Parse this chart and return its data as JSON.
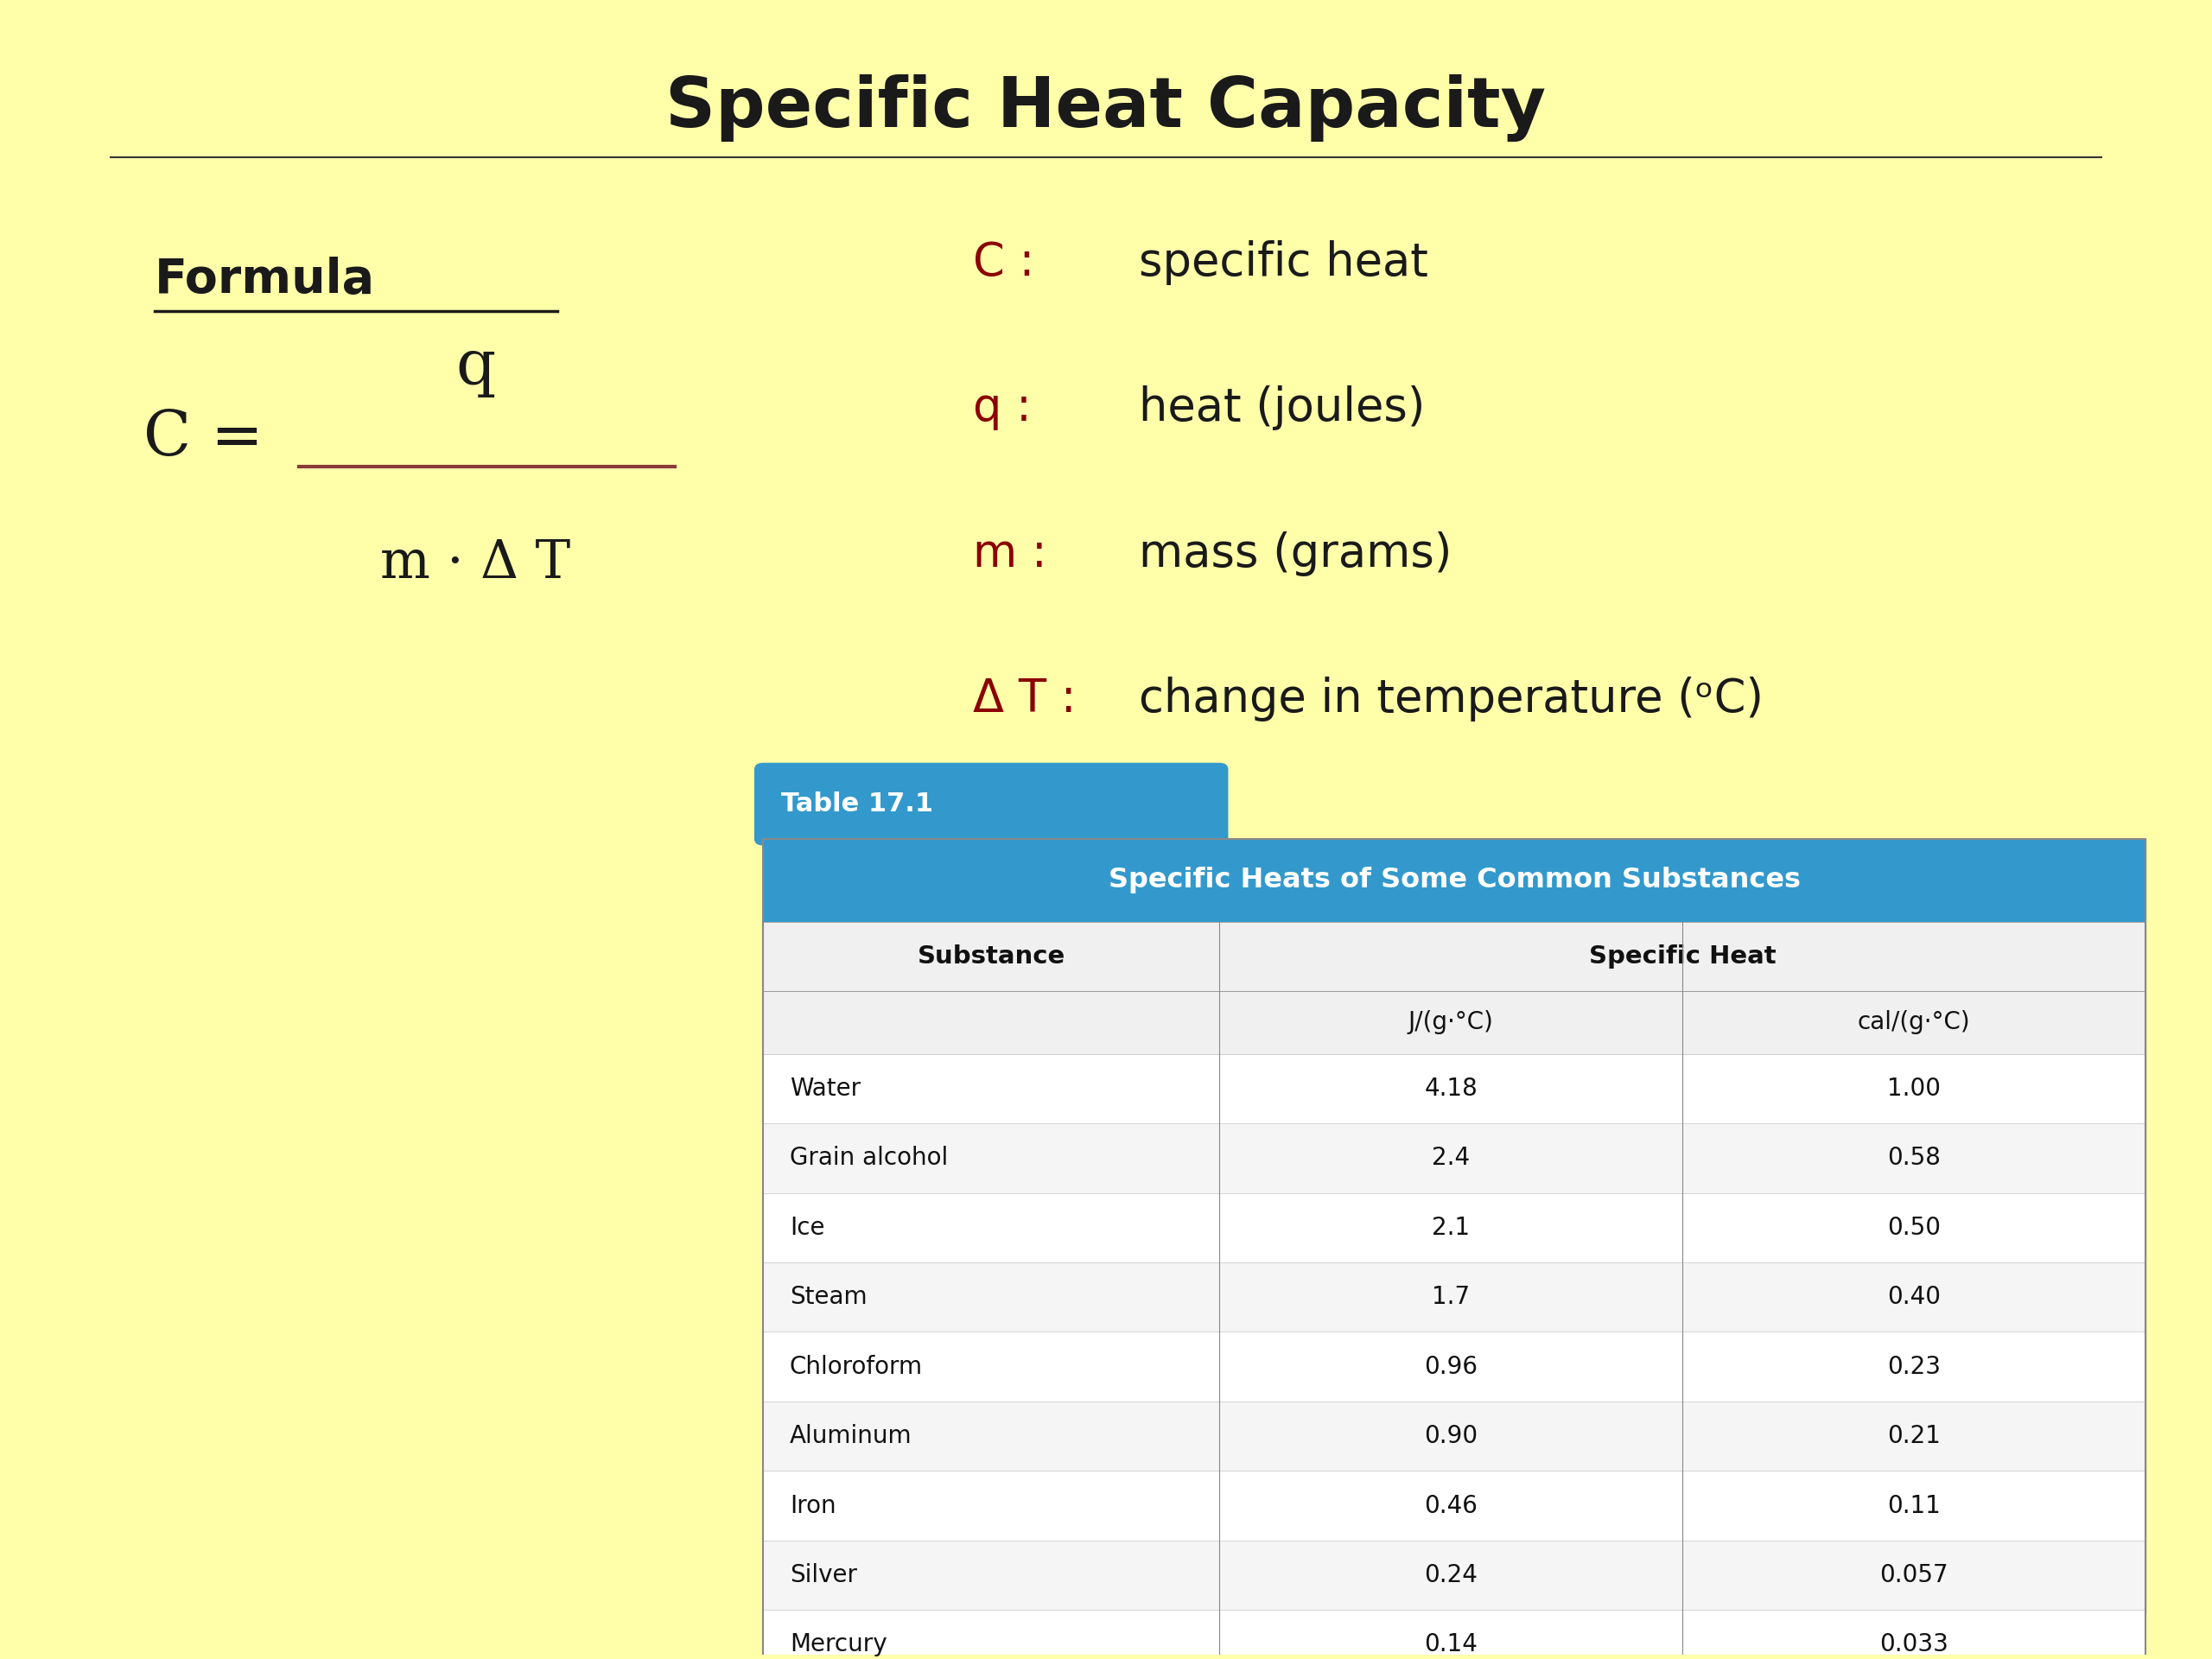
{
  "title": "Specific Heat Capacity",
  "bg_color": "#FFFFAA",
  "title_color": "#1a1a1a",
  "title_fontsize": 58,
  "formula_label": "Formula",
  "formula_color": "#1a1a1a",
  "fraction_color": "#8B3A3A",
  "definitions": [
    [
      "C",
      "specific heat"
    ],
    [
      "q",
      "heat (joules)"
    ],
    [
      "m",
      "mass (grams)"
    ],
    [
      "Δ T",
      "change in temperature (ᵒC)"
    ]
  ],
  "def_color": "#8B0000",
  "def_text_color": "#1a1a1a",
  "table_title": "Table 17.1",
  "table_header": "Specific Heats of Some Common Substances",
  "table_header_bg": "#3399CC",
  "table_title_bg": "#3399CC",
  "col1_header": "Substance",
  "col2_header": "Specific Heat",
  "col2a_header": "J/(g·°C)",
  "col2b_header": "cal/(g·°C)",
  "table_data": [
    [
      "Water",
      "4.18",
      "1.00"
    ],
    [
      "Grain alcohol",
      "2.4",
      "0.58"
    ],
    [
      "Ice",
      "2.1",
      "0.50"
    ],
    [
      "Steam",
      "1.7",
      "0.40"
    ],
    [
      "Chloroform",
      "0.96",
      "0.23"
    ],
    [
      "Aluminum",
      "0.90",
      "0.21"
    ],
    [
      "Iron",
      "0.46",
      "0.11"
    ],
    [
      "Silver",
      "0.24",
      "0.057"
    ],
    [
      "Mercury",
      "0.14",
      "0.033"
    ]
  ],
  "table_bg": "#FFFFFF",
  "table_border": "#AAAAAA",
  "table_row_alt": "#F0F0F0"
}
